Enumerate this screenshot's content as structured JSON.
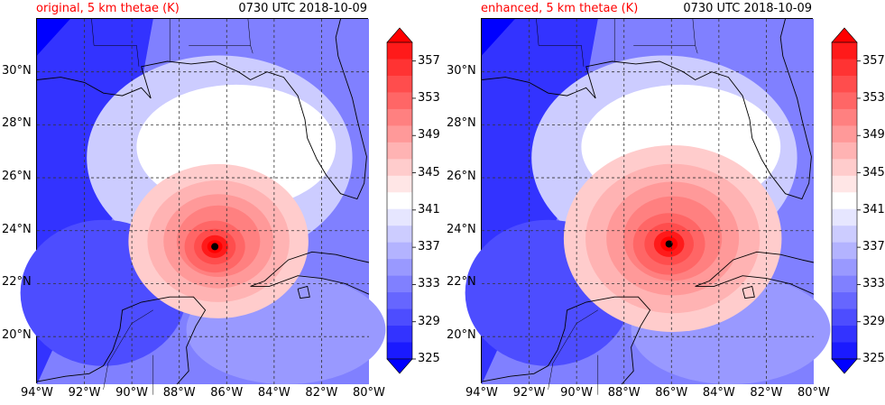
{
  "colors": {
    "colormap": [
      "#0000ff",
      "#1a1aff",
      "#3333ff",
      "#4d4dff",
      "#6666ff",
      "#8080ff",
      "#9999ff",
      "#b3b3ff",
      "#ccccff",
      "#e6e6ff",
      "#ffffff",
      "#ffe6e6",
      "#ffcccc",
      "#ffb3b3",
      "#ff9999",
      "#ff8080",
      "#ff6666",
      "#ff4d4d",
      "#ff3333",
      "#ff1a1a",
      "#ff0000"
    ],
    "title": "#ff0000",
    "center_marker": "#000000"
  },
  "chart_data": [
    {
      "type": "heatmap",
      "title": "original, 5 km thetae (K)",
      "timestamp": "0730 UTC 2018-10-09",
      "x_ticks": [
        "94°W",
        "92°W",
        "90°W",
        "88°W",
        "86°W",
        "84°W",
        "82°W",
        "80°W"
      ],
      "y_ticks": [
        "20°N",
        "22°N",
        "24°N",
        "26°N",
        "28°N",
        "30°N"
      ],
      "xlim": [
        -94,
        -80
      ],
      "ylim": [
        18.2,
        32.0
      ],
      "grid": true,
      "colorbar_ticks": [
        "325",
        "329",
        "333",
        "337",
        "341",
        "345",
        "349",
        "353",
        "357"
      ],
      "colorbar_range": [
        325,
        359
      ],
      "storm_center": {
        "lon": -86.5,
        "lat": 23.4
      }
    },
    {
      "type": "heatmap",
      "title": "enhanced, 5 km thetae (K)",
      "timestamp": "0730 UTC 2018-10-09",
      "x_ticks": [
        "94°W",
        "92°W",
        "90°W",
        "88°W",
        "86°W",
        "84°W",
        "82°W",
        "80°W"
      ],
      "y_ticks": [
        "20°N",
        "22°N",
        "24°N",
        "26°N",
        "28°N",
        "30°N"
      ],
      "xlim": [
        -94,
        -80
      ],
      "ylim": [
        18.2,
        32.0
      ],
      "grid": true,
      "colorbar_ticks": [
        "325",
        "329",
        "333",
        "337",
        "341",
        "345",
        "349",
        "353",
        "357"
      ],
      "colorbar_range": [
        325,
        359
      ],
      "storm_center": {
        "lon": -86.1,
        "lat": 23.5
      }
    }
  ]
}
